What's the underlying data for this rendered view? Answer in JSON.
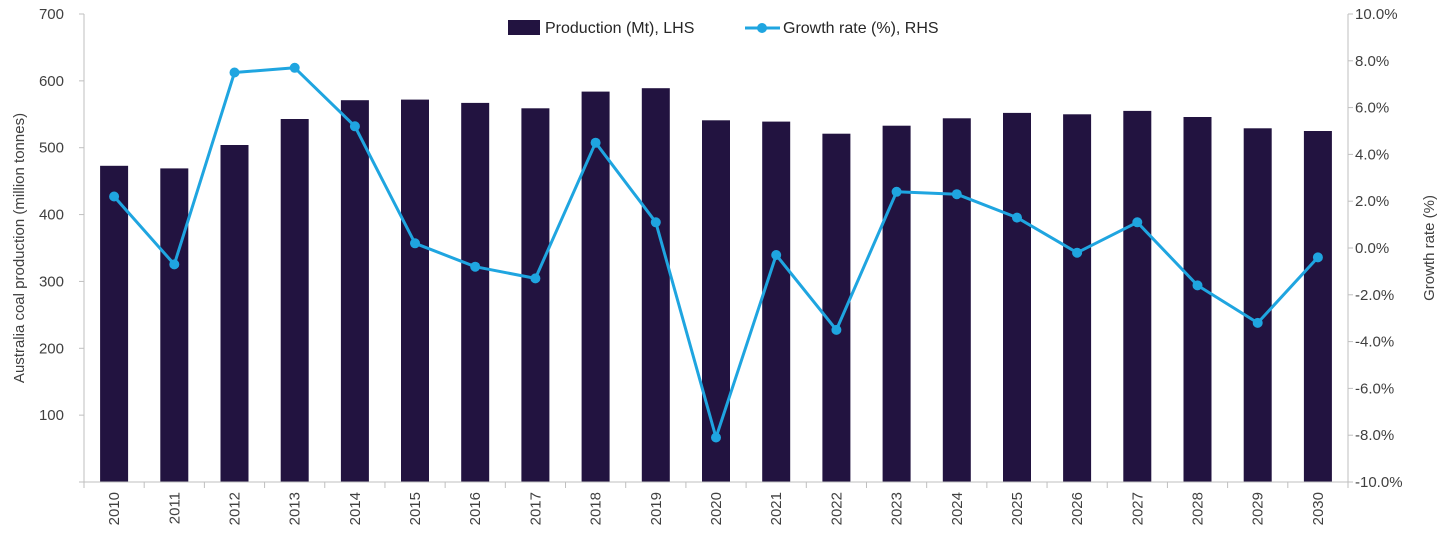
{
  "chart_data": {
    "type": "bar",
    "categories": [
      "2010",
      "2011",
      "2012",
      "2013",
      "2014",
      "2015",
      "2016",
      "2017",
      "2018",
      "2019",
      "2020",
      "2021",
      "2022",
      "2023",
      "2024",
      "2025",
      "2026",
      "2027",
      "2028",
      "2029",
      "2030"
    ],
    "series": [
      {
        "name": "Production (Mt), LHS",
        "type": "bar",
        "axis": "left",
        "values": [
          473,
          469,
          504,
          543,
          571,
          572,
          567,
          559,
          584,
          589,
          541,
          539,
          521,
          533,
          544,
          552,
          550,
          555,
          546,
          529,
          525
        ]
      },
      {
        "name": "Growth rate (%), RHS",
        "type": "line",
        "axis": "right",
        "values": [
          2.2,
          -0.7,
          7.5,
          7.7,
          5.2,
          0.2,
          -0.8,
          -1.3,
          4.5,
          1.1,
          -8.1,
          -0.3,
          -3.5,
          2.4,
          2.3,
          1.3,
          -0.2,
          1.1,
          -1.6,
          -3.2,
          -0.4
        ]
      }
    ],
    "xlabel": "",
    "ylabel": "Australia coal production (million tonnes)",
    "y2label": "Growth rate (%)",
    "ylim": [
      0,
      700
    ],
    "yticks": [
      "",
      "100",
      "200",
      "300",
      "400",
      "500",
      "600",
      "700"
    ],
    "y2lim": [
      -10,
      10
    ],
    "y2ticks": [
      "-10.0%",
      "-8.0%",
      "-6.0%",
      "-4.0%",
      "-2.0%",
      "0.0%",
      "2.0%",
      "4.0%",
      "6.0%",
      "8.0%",
      "10.0%"
    ],
    "grid": false,
    "legend_position": "top-center",
    "colors": {
      "bar": "#221340",
      "line": "#1fa5e0",
      "axis": "#bfbfbf"
    }
  }
}
